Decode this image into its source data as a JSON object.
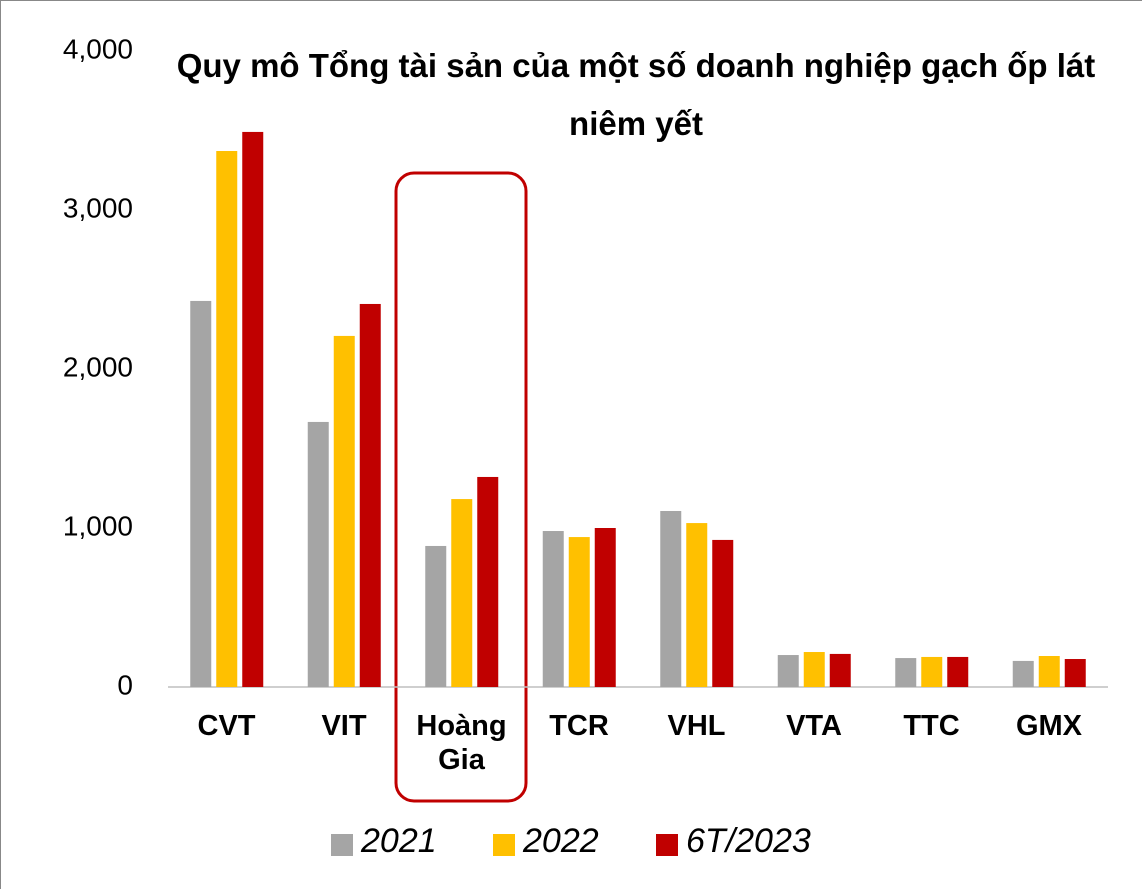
{
  "chart_data": {
    "type": "bar",
    "title": "Quy mô Tổng tài sản của một số doanh nghiệp gạch ốp lát niêm yết",
    "categories": [
      "CVT",
      "VIT",
      "Hoàng Gia",
      "TCR",
      "VHL",
      "VTA",
      "TTC",
      "GMX"
    ],
    "series": [
      {
        "name": "2021",
        "color": "#a5a5a5",
        "values": [
          2428,
          1667,
          887,
          981,
          1107,
          201,
          182,
          164
        ]
      },
      {
        "name": "2022",
        "color": "#ffc000",
        "values": [
          3371,
          2208,
          1182,
          943,
          1031,
          220,
          189,
          195
        ]
      },
      {
        "name": "6T/2023",
        "color": "#c00000",
        "values": [
          3491,
          2409,
          1321,
          1000,
          925,
          208,
          189,
          176
        ]
      }
    ],
    "ylim": [
      0,
      4000
    ],
    "yticks": [
      0,
      {
        "value": 1000,
        "label": "1,000"
      },
      {
        "value": 2000,
        "label": "2,000"
      },
      {
        "value": 3000,
        "label": "3,000"
      },
      {
        "value": 4000,
        "label": "4,000"
      }
    ],
    "grid": false
  }
}
